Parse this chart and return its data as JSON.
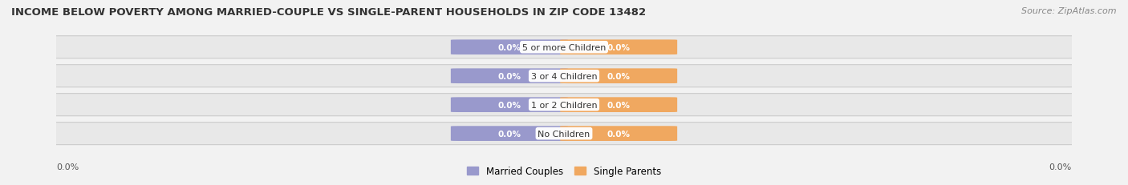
{
  "title": "INCOME BELOW POVERTY AMONG MARRIED-COUPLE VS SINGLE-PARENT HOUSEHOLDS IN ZIP CODE 13482",
  "source": "Source: ZipAtlas.com",
  "categories": [
    "No Children",
    "1 or 2 Children",
    "3 or 4 Children",
    "5 or more Children"
  ],
  "married_values": [
    0.0,
    0.0,
    0.0,
    0.0
  ],
  "single_values": [
    0.0,
    0.0,
    0.0,
    0.0
  ],
  "married_color": "#9999cc",
  "single_color": "#f0a860",
  "married_label": "Married Couples",
  "single_label": "Single Parents",
  "background_color": "#f2f2f2",
  "row_background_color": "#e8e8e8",
  "title_fontsize": 9.5,
  "source_fontsize": 8,
  "label_fontsize": 8
}
